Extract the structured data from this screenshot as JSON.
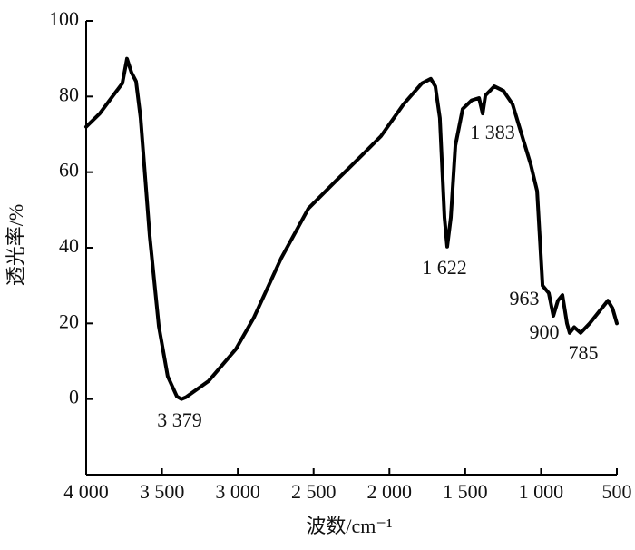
{
  "chart_data": {
    "type": "line",
    "xlabel": "波数/cm⁻¹",
    "ylabel": "透光率/%",
    "color": "#000000",
    "x": [
      4000,
      3910,
      3821,
      3761,
      3731,
      3701,
      3671,
      3641,
      3581,
      3521,
      3462,
      3402,
      3372,
      3342,
      3192,
      3013,
      2893,
      2714,
      2534,
      2355,
      2175,
      2056,
      1906,
      1786,
      1727,
      1697,
      1667,
      1637,
      1619,
      1595,
      1565,
      1517,
      1457,
      1409,
      1385,
      1367,
      1308,
      1248,
      1188,
      1128,
      1068,
      1026,
      990,
      949,
      919,
      889,
      859,
      829,
      811,
      781,
      739,
      679,
      619,
      559,
      529,
      500
    ],
    "values": [
      72,
      75.5,
      80.3,
      83.5,
      90,
      86.3,
      84,
      74.3,
      43.2,
      19.2,
      6,
      0.7,
      0,
      0.5,
      4.8,
      13.2,
      21.6,
      37.2,
      50.4,
      57.6,
      64.7,
      69.5,
      78,
      83.5,
      84.7,
      82.7,
      74.3,
      48,
      40.3,
      48,
      67,
      76.7,
      79,
      79.6,
      75.5,
      80.3,
      82.7,
      81.5,
      78,
      70,
      62,
      55,
      30,
      28,
      22,
      26,
      27.5,
      20,
      17.5,
      19,
      17.5,
      20,
      23,
      26,
      24,
      20
    ],
    "xlim": [
      4000,
      500
    ],
    "xticks": [
      {
        "value": 4000,
        "label": "4 000"
      },
      {
        "value": 3500,
        "label": "3 500"
      },
      {
        "value": 3000,
        "label": "3 000"
      },
      {
        "value": 2500,
        "label": "2 500"
      },
      {
        "value": 2000,
        "label": "2 000"
      },
      {
        "value": 1500,
        "label": "1 500"
      },
      {
        "value": 1000,
        "label": "1 000"
      },
      500
    ],
    "ylim": [
      -20,
      100
    ],
    "yticks": [
      0,
      20,
      40,
      60,
      80,
      100
    ],
    "annotations": [
      "3 379",
      "1 622",
      "1 383",
      "963",
      "900",
      "785"
    ]
  }
}
